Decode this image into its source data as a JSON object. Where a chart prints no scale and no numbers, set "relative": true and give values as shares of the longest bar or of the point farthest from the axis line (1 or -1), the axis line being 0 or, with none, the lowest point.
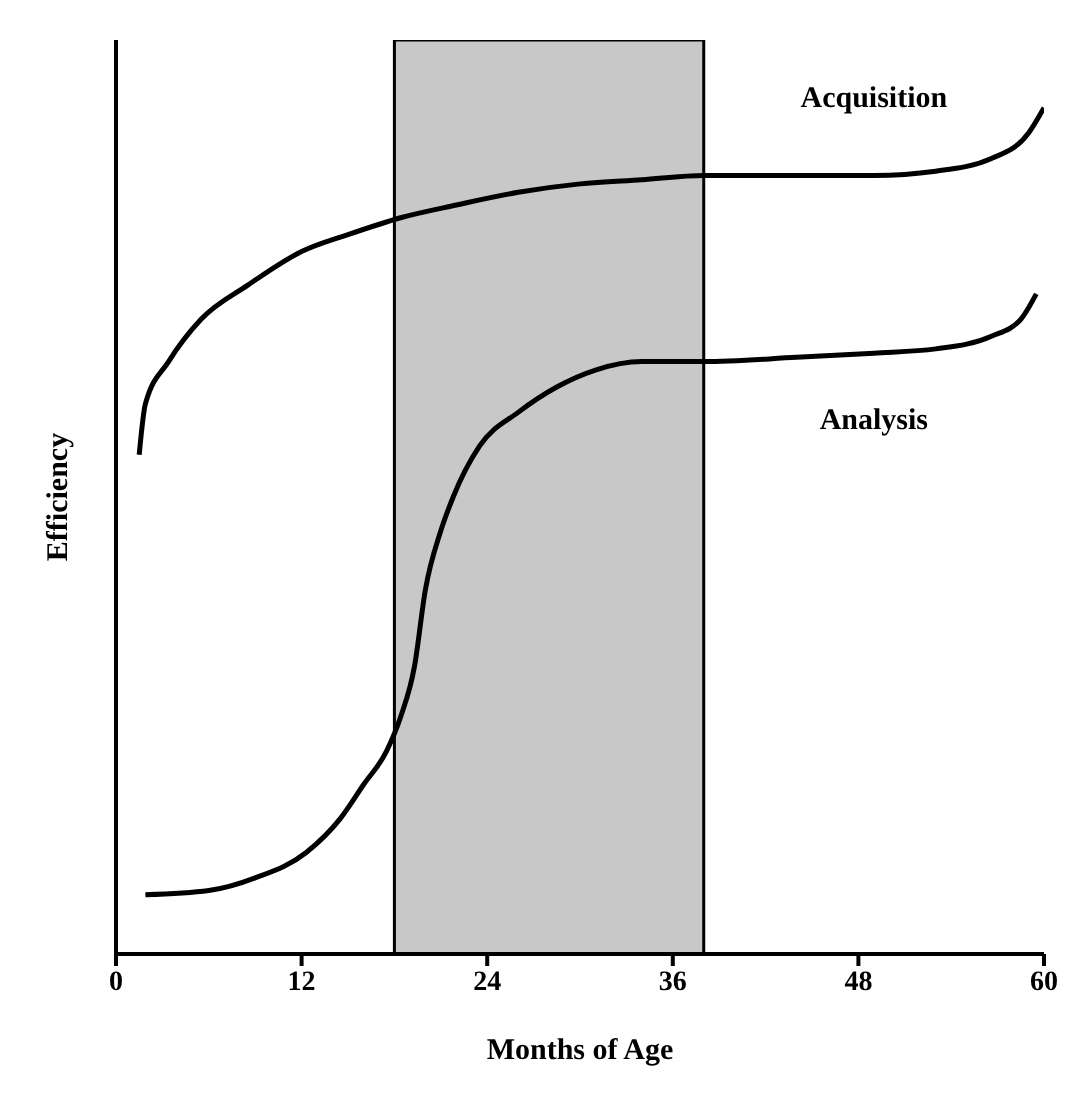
{
  "chart_data": {
    "type": "line",
    "relative": true,
    "xlabel": "Months of Age",
    "ylabel": "Efficiency",
    "xlim": [
      0,
      60
    ],
    "xticks": [
      0,
      12,
      24,
      36,
      48,
      60
    ],
    "legend": false,
    "marker": "none",
    "line_style": "solid",
    "series": [
      {
        "name": "Acquisition",
        "color": "#000000",
        "x": [
          1.5,
          1.9,
          3.4,
          5.5,
          8.5,
          12,
          15,
          18.4,
          22,
          26,
          30,
          34,
          38,
          44,
          49,
          53,
          56.6,
          59,
          60
        ],
        "values": [
          0.59,
          0.65,
          0.7,
          0.75,
          0.79,
          0.83,
          0.85,
          0.87,
          0.885,
          0.9,
          0.91,
          0.915,
          0.92,
          0.92,
          0.92,
          0.925,
          0.94,
          0.97,
          1
        ]
      },
      {
        "name": "Analysis",
        "color": "#000000",
        "x": [
          1.9,
          6,
          9,
          12.3,
          14.5,
          16,
          17.5,
          18.4,
          19.3,
          20,
          21,
          21.8,
          23.5,
          26,
          28.5,
          31,
          34,
          38,
          44,
          49,
          53,
          56.6,
          58.5,
          59.5
        ],
        "values": [
          0.07,
          0.075,
          0.09,
          0.12,
          0.16,
          0.2,
          0.24,
          0.28,
          0.34,
          0.43,
          0.5,
          0.54,
          0.6,
          0.64,
          0.67,
          0.69,
          0.7,
          0.7,
          0.705,
          0.71,
          0.715,
          0.73,
          0.75,
          0.78
        ]
      }
    ],
    "bands": [
      {
        "axis": "x",
        "from": 18,
        "to": 38,
        "color": "#c8c8c8"
      }
    ]
  }
}
